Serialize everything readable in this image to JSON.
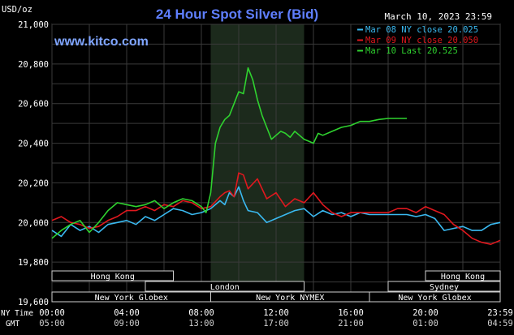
{
  "header": {
    "unit_label": "USD/oz",
    "title": "24 Hour Spot Silver (Bid)",
    "datetime": "March 10, 2023 23:59",
    "watermark": "www.kitco.com"
  },
  "colors": {
    "background": "#000000",
    "plot_background": "#000000",
    "shaded_session": "#1c2a1c",
    "grid": "#3a3a3a",
    "title": "#5f7fff",
    "watermark": "#7fa5ff",
    "text": "#ffffff",
    "series_mar08": "#3ab9f0",
    "series_mar09": "#e0181e",
    "series_mar10": "#2fd22f",
    "market_box_fill": "#000000",
    "market_box_border": "#cfcfcf"
  },
  "markets": [
    {
      "name": "Hong Kong",
      "start": 0,
      "end": 6.5
    },
    {
      "name": "London",
      "start": 5,
      "end": 13.5
    },
    {
      "name": "New York Globex",
      "start": 0,
      "end": 8.5
    },
    {
      "name": "New York NYMEX",
      "start": 8.5,
      "end": 17
    },
    {
      "name": "NY Globex",
      "start": 17,
      "end": 22.5
    },
    {
      "name": "Hong Kong",
      "start": 20,
      "end": 24
    },
    {
      "name": "Sydney",
      "start": 18,
      "end": 24
    },
    {
      "name": "New York Globex",
      "start": 17,
      "end": 24
    }
  ],
  "axis_rows": {
    "ny_time_label": "NY Time",
    "gmt_label": "GMT"
  },
  "chart_data": {
    "type": "line",
    "title": "24 Hour Spot Silver (Bid)",
    "ylabel": "USD/oz",
    "ylim": [
      19600,
      21000
    ],
    "y_ticks": [
      "21,000",
      "20,800",
      "20,600",
      "20,400",
      "20,200",
      "20,000",
      "19,800",
      "19,600"
    ],
    "y_tick_values": [
      21000,
      20800,
      20600,
      20400,
      20200,
      20000,
      19800,
      19600
    ],
    "xlim": [
      0,
      24
    ],
    "x_ticks": [
      "00:00",
      "04:00",
      "08:00",
      "12:00",
      "16:00",
      "20:00",
      "23:59"
    ],
    "x_tick_values": [
      0,
      4,
      8,
      12,
      16,
      20,
      24
    ],
    "gmt_ticks": [
      "05:00",
      "09:00",
      "13:00",
      "17:00",
      "21:00",
      "01:00",
      "04:59"
    ],
    "grid": true,
    "legend_position": "top-right",
    "shaded_period": [
      8.5,
      13.5
    ],
    "series": [
      {
        "name": "Mar 08 NY close 20.025",
        "color": "#3ab9f0",
        "x": [
          0,
          0.5,
          1,
          1.5,
          2,
          2.5,
          3,
          3.5,
          4,
          4.5,
          5,
          5.5,
          6,
          6.5,
          7,
          7.5,
          8,
          8.5,
          9,
          9.25,
          9.5,
          9.75,
          10,
          10.25,
          10.5,
          11,
          11.5,
          12,
          12.5,
          13,
          13.5,
          14,
          14.5,
          15,
          15.5,
          16,
          16.5,
          17,
          17.5,
          18,
          18.5,
          19,
          19.5,
          20,
          20.5,
          21,
          21.5,
          22,
          22.5,
          23,
          23.5,
          24
        ],
        "y": [
          19960,
          19930,
          19990,
          19960,
          19980,
          19950,
          19990,
          20000,
          20010,
          19990,
          20030,
          20010,
          20040,
          20070,
          20060,
          20040,
          20050,
          20070,
          20110,
          20090,
          20150,
          20130,
          20180,
          20110,
          20060,
          20050,
          20000,
          20020,
          20040,
          20060,
          20070,
          20030,
          20060,
          20040,
          20050,
          20030,
          20050,
          20040,
          20040,
          20040,
          20040,
          20040,
          20030,
          20040,
          20020,
          19960,
          19970,
          19980,
          19960,
          19960,
          19990,
          20000
        ]
      },
      {
        "name": "Mar 09 NY close 20.050",
        "color": "#e0181e",
        "x": [
          0,
          0.5,
          1,
          1.5,
          2,
          2.5,
          3,
          3.5,
          4,
          4.5,
          5,
          5.5,
          6,
          6.5,
          7,
          7.5,
          8,
          8.5,
          9,
          9.25,
          9.5,
          9.75,
          10,
          10.25,
          10.5,
          11,
          11.5,
          12,
          12.5,
          13,
          13.5,
          14,
          14.5,
          15,
          15.5,
          16,
          16.5,
          17,
          17.5,
          18,
          18.5,
          19,
          19.5,
          20,
          20.5,
          21,
          21.5,
          22,
          22.5,
          23,
          23.5,
          24
        ],
        "y": [
          20010,
          20030,
          20000,
          19990,
          19970,
          19980,
          20010,
          20030,
          20060,
          20060,
          20080,
          20060,
          20090,
          20080,
          20110,
          20100,
          20070,
          20080,
          20130,
          20150,
          20160,
          20130,
          20250,
          20240,
          20170,
          20220,
          20120,
          20150,
          20080,
          20120,
          20100,
          20150,
          20090,
          20050,
          20030,
          20050,
          20050,
          20050,
          20050,
          20050,
          20070,
          20070,
          20050,
          20080,
          20060,
          20040,
          19990,
          19960,
          19920,
          19900,
          19890,
          19910
        ]
      },
      {
        "name": "Mar 10 Last 20.525",
        "color": "#2fd22f",
        "x": [
          0,
          0.5,
          1,
          1.5,
          2,
          2.5,
          3,
          3.5,
          4,
          4.5,
          5,
          5.5,
          6,
          6.5,
          7,
          7.5,
          8,
          8.25,
          8.5,
          8.75,
          9,
          9.25,
          9.5,
          9.75,
          10,
          10.25,
          10.5,
          10.75,
          11,
          11.25,
          11.5,
          11.75,
          12,
          12.25,
          12.5,
          12.75,
          13,
          13.25,
          13.5,
          13.75,
          14,
          14.25,
          14.5,
          15,
          15.5,
          16,
          16.5,
          17,
          17.5,
          18,
          18.5,
          19
        ],
        "y": [
          19920,
          19960,
          19990,
          20010,
          19950,
          20000,
          20060,
          20100,
          20090,
          20080,
          20090,
          20110,
          20070,
          20100,
          20120,
          20110,
          20080,
          20050,
          20150,
          20400,
          20480,
          20520,
          20540,
          20600,
          20660,
          20650,
          20780,
          20720,
          20620,
          20540,
          20480,
          20420,
          20440,
          20460,
          20450,
          20430,
          20460,
          20440,
          20420,
          20410,
          20400,
          20450,
          20440,
          20460,
          20480,
          20490,
          20510,
          20510,
          20520,
          20525,
          20525,
          20525
        ]
      }
    ]
  }
}
